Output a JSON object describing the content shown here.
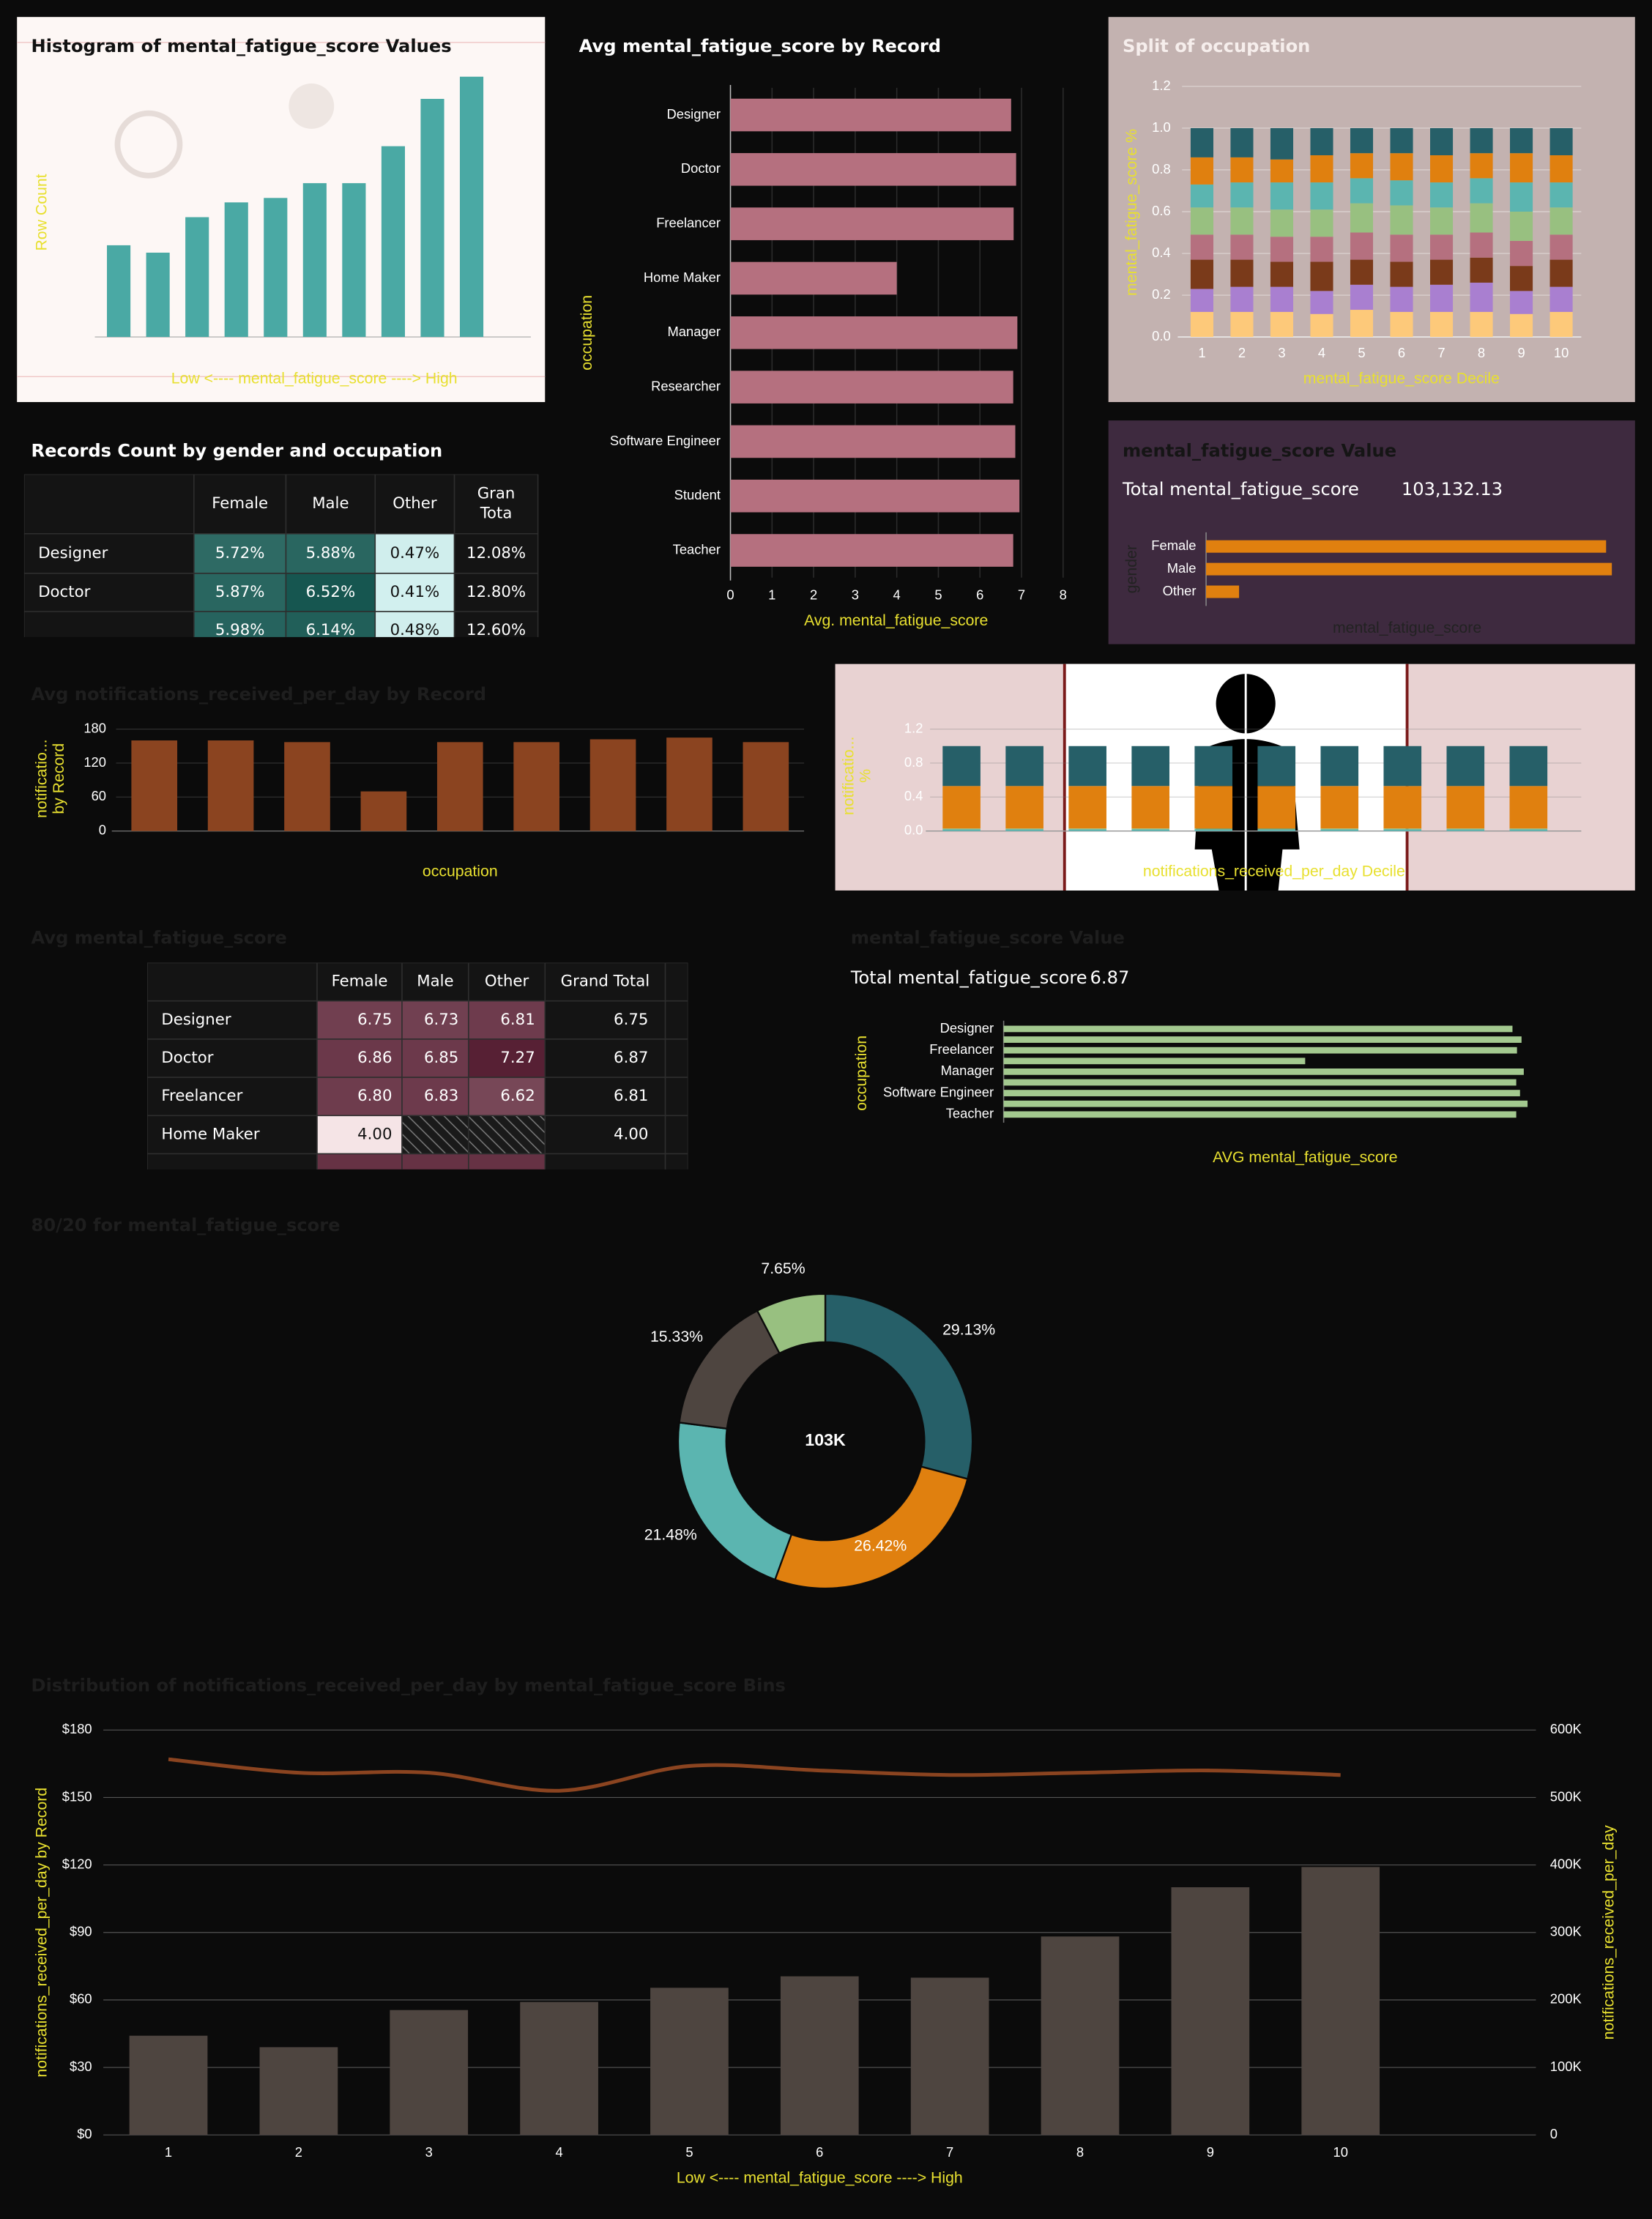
{
  "chart_data": [
    {
      "type": "bar",
      "title": "Histogram of mental_fatigue_score Values",
      "ylabel": "Row Count",
      "xlabel": "Low <---- mental_fatigue_score ----> High",
      "categories": [
        null,
        null,
        null,
        null,
        null,
        null,
        null,
        null,
        null,
        null
      ],
      "values": [
        62,
        57,
        81,
        91,
        94,
        104,
        104,
        129,
        161,
        176
      ],
      "color": "#4aa9a4",
      "ylim": [
        0,
        180
      ]
    },
    {
      "type": "bar",
      "orientation": "horizontal",
      "title": "Avg mental_fatigue_score by Record",
      "xlabel": "Avg. mental_fatigue_score",
      "ylabel": "occupation",
      "categories": [
        "Designer",
        "Doctor",
        "Freelancer",
        "Home Maker",
        "Manager",
        "Researcher",
        "Software Engineer",
        "Student",
        "Teacher"
      ],
      "values": [
        6.75,
        6.87,
        6.81,
        4.0,
        6.9,
        6.8,
        6.85,
        6.95,
        6.8
      ],
      "color": "#b5707f",
      "xlim": [
        0,
        8
      ],
      "xticks": [
        0,
        1,
        2,
        3,
        4,
        5,
        6,
        7,
        8
      ],
      "grid": true
    },
    {
      "type": "stacked_bar",
      "title": "Split of occupation",
      "ylabel": "mental_fatigue_score %",
      "xlabel": "mental_fatigue_score Decile",
      "categories": [
        "1",
        "2",
        "3",
        "4",
        "5",
        "6",
        "7",
        "8",
        "9",
        "10"
      ],
      "series": [
        {
          "color": "#fdc97a",
          "values": [
            0.12,
            0.12,
            0.12,
            0.11,
            0.13,
            0.12,
            0.12,
            0.12,
            0.11,
            0.12
          ]
        },
        {
          "color": "#a97fd0",
          "values": [
            0.11,
            0.12,
            0.12,
            0.11,
            0.12,
            0.12,
            0.13,
            0.14,
            0.11,
            0.12
          ]
        },
        {
          "color": "#7a3a1a",
          "values": [
            0.14,
            0.13,
            0.12,
            0.14,
            0.12,
            0.12,
            0.12,
            0.12,
            0.12,
            0.13
          ]
        },
        {
          "color": "#b5707f",
          "values": [
            0.12,
            0.12,
            0.12,
            0.12,
            0.13,
            0.13,
            0.12,
            0.12,
            0.12,
            0.12
          ]
        },
        {
          "color": "#98c080",
          "values": [
            0.13,
            0.13,
            0.13,
            0.13,
            0.14,
            0.14,
            0.13,
            0.14,
            0.14,
            0.13
          ]
        },
        {
          "color": "#5bb5b0",
          "values": [
            0.11,
            0.12,
            0.13,
            0.13,
            0.12,
            0.12,
            0.12,
            0.12,
            0.14,
            0.12
          ]
        },
        {
          "color": "#e0800f",
          "values": [
            0.13,
            0.12,
            0.11,
            0.13,
            0.12,
            0.13,
            0.13,
            0.12,
            0.14,
            0.13
          ]
        },
        {
          "color": "#265f68",
          "values": [
            0.14,
            0.14,
            0.15,
            0.13,
            0.12,
            0.12,
            0.13,
            0.12,
            0.12,
            0.13
          ]
        }
      ],
      "ylim": [
        0,
        1.2
      ],
      "yticks": [
        {
          "value": 0,
          "label": "0.0"
        },
        0.2,
        0.4,
        0.6,
        0.8,
        {
          "value": 1,
          "label": "1.0"
        },
        1.2
      ],
      "grid": true
    },
    {
      "type": "bar",
      "orientation": "horizontal",
      "title": "mental_fatigue_score Value",
      "kpi_label": "Total mental_fatigue_score",
      "kpi_value": "103,132.13",
      "xlabel": "mental_fatigue_score",
      "ylabel": "gender",
      "categories": [
        "Female",
        "Male",
        "Other"
      ],
      "values": [
        49186,
        49891,
        4055
      ],
      "color": "#e0800f",
      "xlim": [
        0,
        51000
      ]
    },
    {
      "type": "bar",
      "title": "Avg notifications_received_per_day by Record",
      "ylabel_lines": [
        "notificatio...",
        "by Record"
      ],
      "xlabel": "occupation",
      "categories": [
        null,
        null,
        null,
        null,
        null,
        null,
        null,
        null,
        null
      ],
      "values": [
        160,
        160,
        157,
        70,
        157,
        157,
        162,
        165,
        157
      ],
      "color": "#8b4420",
      "ylim": [
        0,
        180
      ],
      "yticks": [
        0,
        60,
        120,
        180
      ],
      "grid": true
    },
    {
      "type": "stacked_bar",
      "ylabel_lines": [
        "notificatio...",
        "%"
      ],
      "xlabel": "notifications_received_per_day Decile",
      "categories": [
        null,
        null,
        null,
        null,
        null,
        null,
        null,
        null,
        null,
        null
      ],
      "series": [
        {
          "color": "#5bb5b0",
          "values": [
            0.02,
            0.02,
            0.02,
            0.02,
            0.02,
            0.02,
            0.02,
            0.02,
            0.02,
            0.02
          ]
        },
        {
          "color": "#98c080",
          "values": [
            0.01,
            0.01,
            0.01,
            0.01,
            0.01,
            0.01,
            0.01,
            0.01,
            0.01,
            0.01
          ]
        },
        {
          "color": "#e0800f",
          "values": [
            0.5,
            0.5,
            0.5,
            0.5,
            0.5,
            0.5,
            0.5,
            0.5,
            0.5,
            0.5
          ]
        },
        {
          "color": "#265f68",
          "values": [
            0.47,
            0.47,
            0.47,
            0.47,
            0.47,
            0.47,
            0.47,
            0.47,
            0.47,
            0.47
          ]
        }
      ],
      "ylim": [
        0,
        1.2
      ],
      "yticks": [
        {
          "value": 0,
          "label": "0.0"
        },
        0.4,
        0.8,
        1.2
      ],
      "grid": true
    },
    {
      "type": "bar",
      "orientation": "horizontal",
      "title": "mental_fatigue_score Value",
      "kpi_label": "Total mental_fatigue_score",
      "kpi_value": "6.87",
      "xlabel": "AVG mental_fatigue_score",
      "ylabel": "occupation",
      "categories": [
        "Designer",
        null,
        "Freelancer",
        null,
        "Manager",
        null,
        "Software Engineer",
        null,
        "Teacher"
      ],
      "values": [
        6.75,
        6.87,
        6.81,
        4.0,
        6.9,
        6.8,
        6.85,
        6.95,
        6.8
      ],
      "color": "#a3c98f",
      "xlim": [
        0,
        8
      ]
    },
    {
      "type": "donut",
      "title": "80/20 for mental_fatigue_score",
      "center_label": "103K",
      "values": [
        29.13,
        26.42,
        21.48,
        15.33,
        7.65
      ],
      "value_labels": [
        "29.13%",
        "26.42%",
        "21.48%",
        "15.33%",
        "7.65%"
      ],
      "colors": [
        "#265f68",
        "#e0800f",
        "#5bb5b0",
        "#4e4540",
        "#98c080"
      ]
    },
    {
      "type": "combo",
      "title": "Distribution of notifications_received_per_day by mental_fatigue_score Bins",
      "xlabel": "Low <---- mental_fatigue_score ----> High",
      "ylabel": "notifications_received_per_day by Record",
      "y2label": "notifications_received_per_day",
      "categories": [
        "1",
        "2",
        "3",
        "4",
        "5",
        "6",
        "7",
        "8",
        "9",
        "10"
      ],
      "series": [
        {
          "type": "bar",
          "axis": "y2",
          "color": "#4e4540",
          "values": [
            147000,
            130000,
            185000,
            197000,
            218000,
            235000,
            233000,
            294000,
            367000,
            397000
          ]
        },
        {
          "type": "line",
          "color": "#8b4420",
          "values": [
            167,
            161,
            161,
            153,
            164,
            162,
            160,
            161,
            162,
            160
          ]
        }
      ],
      "ylim": [
        0,
        180
      ],
      "yticks": [
        {
          "value": 0,
          "label": "$0"
        },
        {
          "value": 30,
          "label": "$30"
        },
        {
          "value": 60,
          "label": "$60"
        },
        {
          "value": 90,
          "label": "$90"
        },
        {
          "value": 120,
          "label": "$120"
        },
        {
          "value": 150,
          "label": "$150"
        },
        {
          "value": 180,
          "label": "$180"
        }
      ],
      "y2lim": [
        0,
        600000
      ],
      "y2ticks": [
        0,
        {
          "value": 100000,
          "label": "100K"
        },
        {
          "value": 200000,
          "label": "200K"
        },
        {
          "value": 300000,
          "label": "300K"
        },
        {
          "value": 400000,
          "label": "400K"
        },
        {
          "value": 500000,
          "label": "500K"
        },
        {
          "value": 600000,
          "label": "600K"
        }
      ],
      "grid": true
    }
  ],
  "tables": [
    {
      "title": "Records Count by gender and occupation",
      "columns": [
        null,
        "Female",
        "Male",
        "Other",
        [
          "Gran",
          "Tota"
        ]
      ],
      "rows": [
        [
          "Designer",
          "5.72%",
          "5.88%",
          "0.47%",
          "12.08%"
        ],
        [
          "Doctor",
          "5.87%",
          "6.52%",
          "0.41%",
          "12.80%"
        ],
        [
          null,
          "5.98%",
          "6.14%",
          "0.48%",
          "12.60%"
        ]
      ]
    },
    {
      "title": "Avg mental_fatigue_score",
      "columns": [
        null,
        "Female",
        "Male",
        "Other",
        "Grand Total"
      ],
      "rows": [
        [
          "Designer",
          "6.75",
          "6.73",
          "6.81",
          "6.75"
        ],
        [
          "Doctor",
          "6.86",
          "6.85",
          "7.27",
          "6.87"
        ],
        [
          "Freelancer",
          "6.80",
          "6.83",
          "6.62",
          "6.81"
        ],
        [
          "Home Maker",
          "4.00",
          null,
          null,
          "4.00"
        ]
      ]
    }
  ]
}
